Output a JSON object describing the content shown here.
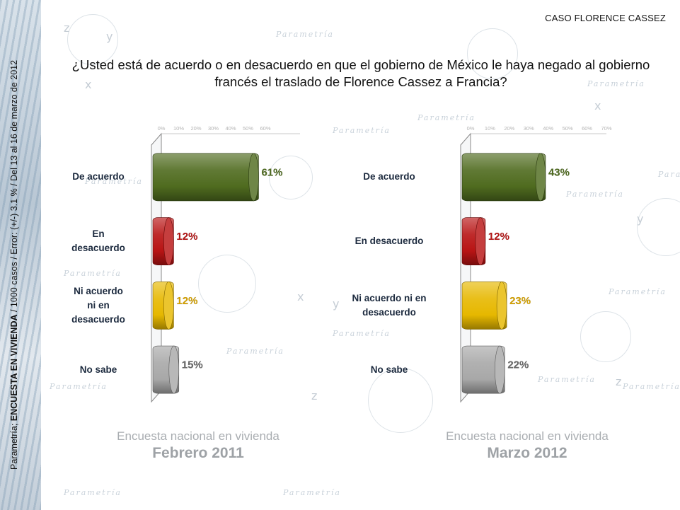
{
  "header": {
    "label": "CASO FLORENCE CASSEZ"
  },
  "question": "¿Usted está de acuerdo o en desacuerdo en que el gobierno de México le haya negado al gobierno francés el traslado de Florence Cassez a Francia?",
  "side_note": {
    "prefix": "Parametría; ",
    "bold": "ENCUESTA EN VIVIENDA",
    "suffix": " / 1000 casos / Error: (+/-) 3.1 % / Del 13 al 16 de marzo de 2012"
  },
  "watermark": {
    "text": "Parametría",
    "glyphs": [
      "x",
      "y",
      "z"
    ]
  },
  "colors": {
    "de_acuerdo": "#4f6b1f",
    "en_desacuerdo": "#b81414",
    "ni_acuerdo": "#e6b800",
    "no_sabe": "#a8a8a8",
    "label_text": "#1c2a3e"
  },
  "chart_data": [
    {
      "type": "bar",
      "orientation": "horizontal",
      "categories": [
        "De acuerdo",
        "En desacuerdo",
        "Ni acuerdo ni en desacuerdo",
        "No sabe"
      ],
      "category_lines": [
        [
          "De acuerdo"
        ],
        [
          "En",
          "desacuerdo"
        ],
        [
          "Ni acuerdo",
          "ni en",
          "desacuerdo"
        ],
        [
          "No sabe"
        ]
      ],
      "values": [
        61,
        12,
        12,
        15
      ],
      "data_labels": [
        "61%",
        "12%",
        "12%",
        "15%"
      ],
      "xlim": [
        0,
        80
      ],
      "x_ticks": [
        "0%",
        "10%",
        "20%",
        "30%",
        "40%",
        "50%",
        "60%"
      ],
      "x_tick_values": [
        0,
        10,
        20,
        30,
        40,
        50,
        60
      ],
      "bar_colors": [
        "#4f6b1f",
        "#b81414",
        "#e6b800",
        "#a8a8a8"
      ],
      "label_colors": [
        "#4f6b1f",
        "#b81414",
        "#d9a400",
        "#6a6a6a"
      ],
      "caption_line1": "Encuesta nacional en vivienda",
      "caption_line2": "Febrero 2011"
    },
    {
      "type": "bar",
      "orientation": "horizontal",
      "categories": [
        "De acuerdo",
        "En desacuerdo",
        "Ni acuerdo ni en desacuerdo",
        "No sabe"
      ],
      "category_lines": [
        [
          "De acuerdo"
        ],
        [
          "En desacuerdo"
        ],
        [
          "Ni acuerdo ni en",
          "desacuerdo"
        ],
        [
          "No sabe"
        ]
      ],
      "values": [
        43,
        12,
        23,
        22
      ],
      "data_labels": [
        "43%",
        "12%",
        "23%",
        "22%"
      ],
      "xlim": [
        0,
        70
      ],
      "x_ticks": [
        "0%",
        "10%",
        "20%",
        "30%",
        "40%",
        "50%",
        "60%",
        "70%"
      ],
      "x_tick_values": [
        0,
        10,
        20,
        30,
        40,
        50,
        60,
        70
      ],
      "bar_colors": [
        "#4f6b1f",
        "#b81414",
        "#e6b800",
        "#a8a8a8"
      ],
      "label_colors": [
        "#4f6b1f",
        "#b81414",
        "#d9a400",
        "#6a6a6a"
      ],
      "caption_line1": "Encuesta nacional en vivienda",
      "caption_line2": "Marzo 2012"
    }
  ]
}
